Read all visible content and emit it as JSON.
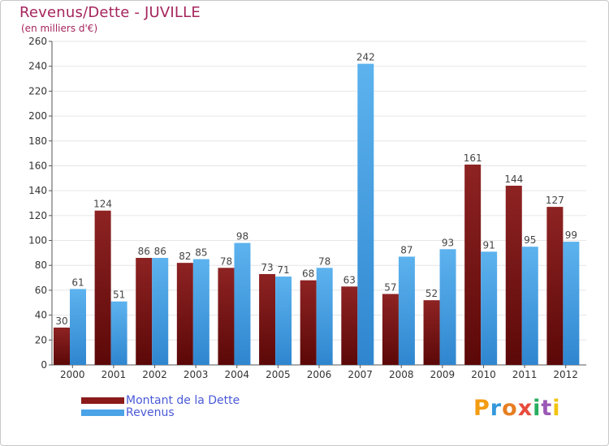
{
  "chart_data": {
    "type": "bar",
    "title": "Revenus/Dette - JUVILLE",
    "subtitle": "(en milliers d'€)",
    "categories": [
      "2000",
      "2001",
      "2002",
      "2003",
      "2004",
      "2005",
      "2006",
      "2007",
      "2008",
      "2009",
      "2010",
      "2011",
      "2012"
    ],
    "series": [
      {
        "name": "Montant de la Dette",
        "color": "#8b1a1a",
        "values": [
          30,
          124,
          86,
          82,
          78,
          73,
          68,
          63,
          57,
          52,
          161,
          144,
          127
        ]
      },
      {
        "name": "Revenus",
        "color": "#4aa3e6",
        "values": [
          61,
          51,
          86,
          85,
          98,
          71,
          78,
          242,
          87,
          93,
          91,
          95,
          99
        ]
      }
    ],
    "ylim": [
      0,
      260
    ],
    "yticks": [
      0,
      20,
      40,
      60,
      80,
      100,
      120,
      140,
      160,
      180,
      200,
      220,
      240,
      260
    ],
    "grid": true,
    "legend": "bottom-left"
  },
  "branding": {
    "logo_letters": [
      "P",
      "r",
      "o",
      "x",
      "i",
      "t",
      "i"
    ],
    "logo_colors": [
      "#f39c12",
      "#3498db",
      "#e67e22",
      "#e74c3c",
      "#27ae60",
      "#9b59b6",
      "#f1c40f"
    ]
  }
}
